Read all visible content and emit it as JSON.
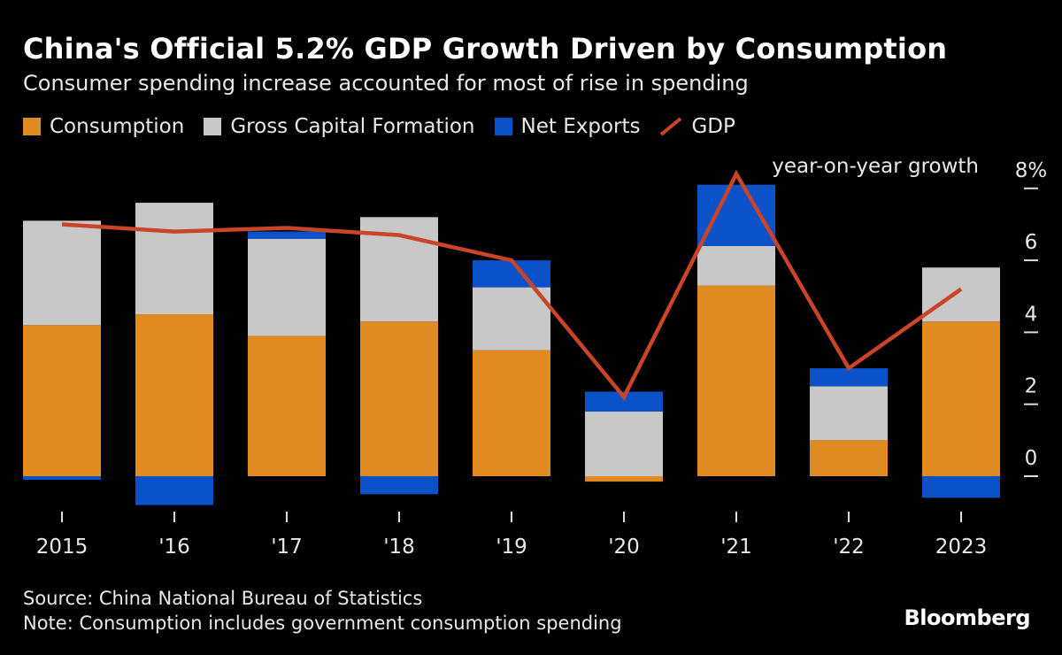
{
  "title": "China's Official 5.2% GDP Growth Driven by Consumption",
  "subtitle": "Consumer spending increase accounted for most of rise in spending",
  "legend": [
    {
      "label": "Consumption",
      "color": "#e08a22",
      "kind": "square"
    },
    {
      "label": "Gross Capital Formation",
      "color": "#c8c8c8",
      "kind": "square"
    },
    {
      "label": "Net Exports",
      "color": "#0b52c9",
      "kind": "square"
    },
    {
      "label": "GDP",
      "color": "#c94428",
      "kind": "line"
    }
  ],
  "footer": {
    "source": "Source: China National Bureau of Statistics",
    "note": "Note: Consumption includes government consumption spending"
  },
  "brand": "Bloomberg",
  "chart_data": {
    "type": "bar",
    "stacked": true,
    "categories": [
      "2015",
      "'16",
      "'17",
      "'18",
      "'19",
      "'20",
      "'21",
      "'22",
      "2023"
    ],
    "series": [
      {
        "name": "Consumption",
        "color": "#e08a22",
        "values": [
          4.2,
          4.5,
          3.9,
          4.3,
          3.5,
          -0.15,
          5.3,
          1.0,
          4.3
        ]
      },
      {
        "name": "Gross Capital Formation",
        "color": "#c8c8c8",
        "values": [
          2.9,
          3.1,
          2.7,
          2.9,
          1.75,
          1.8,
          1.1,
          1.5,
          1.5
        ]
      },
      {
        "name": "Net Exports",
        "color": "#0b52c9",
        "values": [
          -0.1,
          -0.8,
          0.2,
          -0.5,
          0.75,
          0.55,
          1.7,
          0.5,
          -0.6
        ]
      }
    ],
    "line": {
      "name": "GDP",
      "color": "#c94428",
      "values": [
        7.0,
        6.8,
        6.9,
        6.7,
        6.0,
        2.2,
        8.4,
        3.0,
        5.2
      ]
    },
    "yaxis": {
      "label": "year-on-year growth",
      "ticks": [
        "0",
        "2",
        "4",
        "6",
        "8%"
      ],
      "range": [
        -1,
        8
      ],
      "position": "right"
    },
    "grid": false
  }
}
